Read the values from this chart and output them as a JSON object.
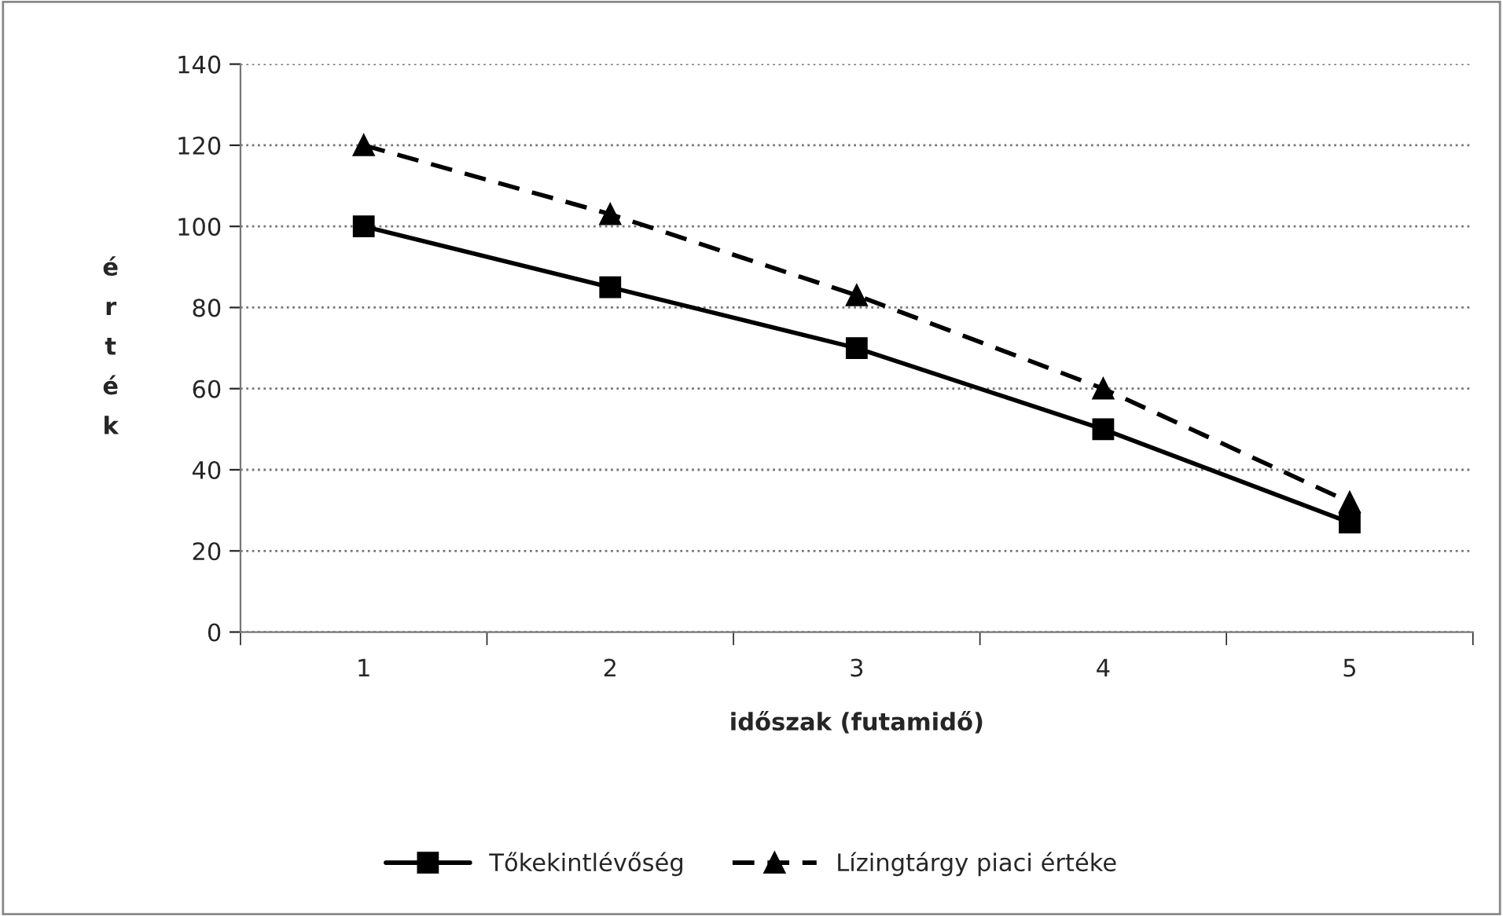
{
  "chart_data": {
    "type": "line",
    "xlabel": "időszak (futamidő)",
    "ylabel": "érték",
    "categories": [
      "1",
      "2",
      "3",
      "4",
      "5"
    ],
    "series": [
      {
        "name": "Tőkekintlévőség",
        "color": "#000000",
        "values": [
          100,
          85,
          70,
          50,
          27
        ],
        "marker": "square",
        "line_style": "solid"
      },
      {
        "name": "Lízingtárgy piaci értéke",
        "color": "#000000",
        "values": [
          120,
          103,
          83,
          60,
          32
        ],
        "marker": "triangle",
        "line_style": "dashed"
      }
    ],
    "ylim": [
      0,
      140
    ],
    "yticks": [
      0,
      20,
      40,
      60,
      80,
      100,
      120,
      140
    ],
    "grid": "y",
    "legend": "bottom"
  }
}
